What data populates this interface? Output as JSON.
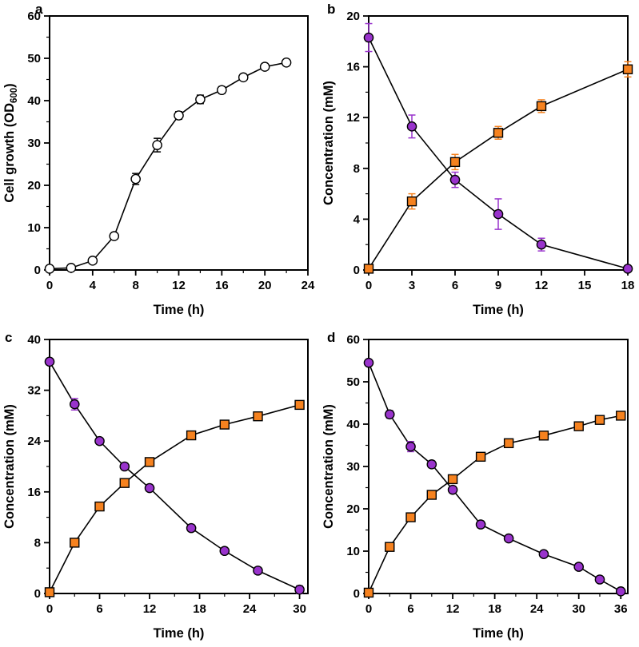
{
  "figure": {
    "panel_labels": [
      "a",
      "b",
      "c",
      "d"
    ],
    "colors": {
      "purple": "#9933CC",
      "orange": "#F6821F",
      "black": "#000000",
      "white": "#FFFFFF"
    }
  },
  "chart_data": [
    {
      "id": "a",
      "panel_label": "a",
      "type": "line",
      "xlabel": "Time (h)",
      "ylabel": "Cell growth (OD600)",
      "ylabel_parts": [
        {
          "t": "Cell growth (OD"
        },
        {
          "t": "600",
          "sub": true
        },
        {
          "t": ")"
        }
      ],
      "xlim": [
        0,
        24
      ],
      "ylim": [
        0,
        60
      ],
      "xticks": [
        0,
        4,
        8,
        12,
        16,
        20,
        24
      ],
      "yticks": [
        0,
        10,
        20,
        30,
        40,
        50,
        60
      ],
      "xminor": 2,
      "yminor": 5,
      "grid": false,
      "legend": "none",
      "series": [
        {
          "name": "cell-growth-od600",
          "marker": "circle",
          "marker_fill": "#FFFFFF",
          "line_color": "#000000",
          "err_color": "#000000",
          "x": [
            0,
            2,
            4,
            6,
            8,
            10,
            12,
            14,
            16,
            18,
            20,
            22
          ],
          "y": [
            0.3,
            0.5,
            2.2,
            8.0,
            21.5,
            29.5,
            36.5,
            40.3,
            42.5,
            45.5,
            48.0,
            49.0
          ],
          "err": [
            0.3,
            0.3,
            0.4,
            0.6,
            1.3,
            1.6,
            0.9,
            1.0,
            0.8,
            0.7,
            0.6,
            0.6
          ]
        }
      ]
    },
    {
      "id": "b",
      "panel_label": "b",
      "type": "line",
      "xlabel": "Time (h)",
      "ylabel": "Concentration (mM)",
      "xlim": [
        0,
        18
      ],
      "ylim": [
        0,
        20
      ],
      "xticks": [
        0,
        3,
        6,
        9,
        12,
        15,
        18
      ],
      "yticks": [
        0,
        4,
        8,
        12,
        16,
        20
      ],
      "xminor": null,
      "yminor": 2,
      "grid": false,
      "legend": "none",
      "series": [
        {
          "name": "substrate-purple-circles",
          "marker": "circle",
          "marker_fill": "#9933CC",
          "line_color": "#000000",
          "err_color": "#9933CC",
          "x": [
            0,
            3,
            6,
            9,
            12,
            18
          ],
          "y": [
            18.3,
            11.3,
            7.1,
            4.4,
            2.0,
            0.1
          ],
          "err": [
            1.1,
            0.9,
            0.6,
            1.2,
            0.5,
            0.1
          ]
        },
        {
          "name": "product-orange-squares",
          "marker": "square",
          "marker_fill": "#F6821F",
          "line_color": "#000000",
          "err_color": "#F6821F",
          "x": [
            0,
            3,
            6,
            9,
            12,
            18
          ],
          "y": [
            0.1,
            5.4,
            8.5,
            10.8,
            12.9,
            15.8
          ],
          "err": [
            0.1,
            0.6,
            0.6,
            0.5,
            0.5,
            0.6
          ]
        }
      ]
    },
    {
      "id": "c",
      "panel_label": "c",
      "type": "line",
      "xlabel": "Time (h)",
      "ylabel": "Concentration (mM)",
      "xlim": [
        0,
        31
      ],
      "ylim": [
        0,
        40
      ],
      "xticks": [
        0,
        6,
        12,
        18,
        24,
        30
      ],
      "yticks": [
        0,
        8,
        16,
        24,
        32,
        40
      ],
      "xminor": 3,
      "yminor": 4,
      "grid": false,
      "legend": "none",
      "series": [
        {
          "name": "substrate-purple-circles",
          "marker": "circle",
          "marker_fill": "#9933CC",
          "line_color": "#000000",
          "err_color": "#9933CC",
          "x": [
            0,
            3,
            6,
            9,
            12,
            17,
            21,
            25,
            30
          ],
          "y": [
            36.5,
            29.8,
            24.0,
            20.0,
            16.6,
            10.3,
            6.7,
            3.6,
            0.6
          ],
          "err": [
            0.5,
            0.9,
            0.5,
            0.5,
            0.5,
            0.5,
            0.4,
            0.4,
            0.6
          ]
        },
        {
          "name": "product-orange-squares",
          "marker": "square",
          "marker_fill": "#F6821F",
          "line_color": "#000000",
          "err_color": "#F6821F",
          "x": [
            0,
            3,
            6,
            9,
            12,
            17,
            21,
            25,
            30
          ],
          "y": [
            0.2,
            8.0,
            13.7,
            17.4,
            20.7,
            24.9,
            26.6,
            27.9,
            29.7
          ],
          "err": [
            0.1,
            0.4,
            0.4,
            0.5,
            0.4,
            0.4,
            0.4,
            0.4,
            0.5
          ]
        }
      ]
    },
    {
      "id": "d",
      "panel_label": "d",
      "type": "line",
      "xlabel": "Time (h)",
      "ylabel": "Concentration (mM)",
      "xlim": [
        0,
        37
      ],
      "ylim": [
        0,
        60
      ],
      "xticks": [
        0,
        6,
        12,
        18,
        24,
        30,
        36
      ],
      "yticks": [
        0,
        10,
        20,
        30,
        40,
        50,
        60
      ],
      "xminor": 3,
      "yminor": 5,
      "grid": false,
      "legend": "none",
      "series": [
        {
          "name": "substrate-purple-circles",
          "marker": "circle",
          "marker_fill": "#9933CC",
          "line_color": "#000000",
          "err_color": "#9933CC",
          "x": [
            0,
            3,
            6,
            9,
            12,
            16,
            20,
            25,
            30,
            33,
            36
          ],
          "y": [
            54.5,
            42.3,
            34.7,
            30.5,
            24.5,
            16.3,
            13.0,
            9.3,
            6.3,
            3.3,
            0.5
          ],
          "err": [
            0.6,
            0.9,
            1.2,
            0.8,
            0.8,
            0.8,
            0.5,
            0.5,
            0.5,
            0.5,
            0.3
          ]
        },
        {
          "name": "product-orange-squares",
          "marker": "square",
          "marker_fill": "#F6821F",
          "line_color": "#000000",
          "err_color": "#F6821F",
          "x": [
            0,
            3,
            6,
            9,
            12,
            16,
            20,
            25,
            30,
            33,
            36
          ],
          "y": [
            0.2,
            11.0,
            18.0,
            23.3,
            27.0,
            32.3,
            35.5,
            37.3,
            39.5,
            41.0,
            42.0
          ],
          "err": [
            0.1,
            0.5,
            0.5,
            0.5,
            0.6,
            0.6,
            0.5,
            0.5,
            0.5,
            0.5,
            0.6
          ]
        }
      ]
    }
  ]
}
